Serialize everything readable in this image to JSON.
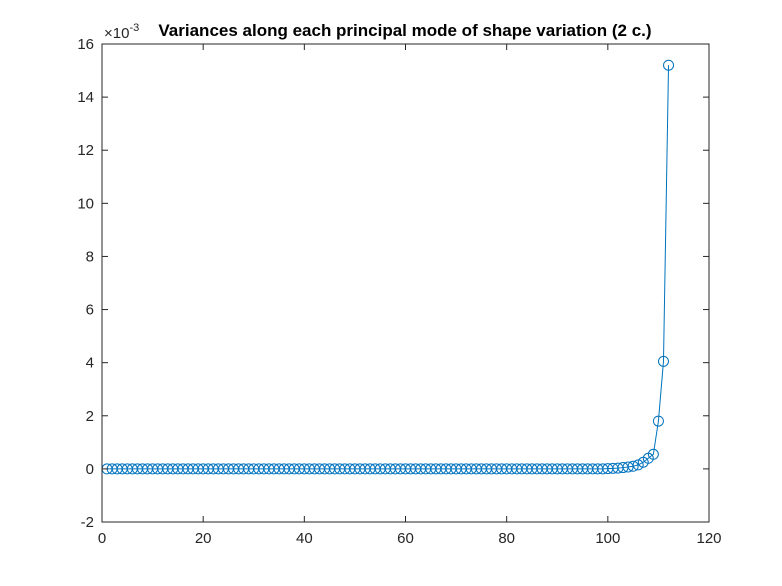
{
  "chart_data": {
    "type": "line",
    "title": "Variances along each principal mode of shape variation (2 c.)",
    "xlabel": "",
    "ylabel": "",
    "xlim": [
      0,
      120
    ],
    "ylim": [
      -2,
      16
    ],
    "y_exponent_label": "×10",
    "y_exponent_power": "-3",
    "x_ticks": [
      0,
      20,
      40,
      60,
      80,
      100,
      120
    ],
    "y_ticks": [
      -2,
      0,
      2,
      4,
      6,
      8,
      10,
      12,
      14,
      16
    ],
    "x_tick_labels": [
      "0",
      "20",
      "40",
      "60",
      "80",
      "100",
      "120"
    ],
    "y_tick_labels": [
      "-2",
      "0",
      "2",
      "4",
      "6",
      "8",
      "10",
      "12",
      "14",
      "16"
    ],
    "grid": false,
    "marker": "circle",
    "line_color": "#0072BD",
    "series": [
      {
        "x": [
          1,
          2,
          3,
          4,
          5,
          6,
          7,
          8,
          9,
          10,
          11,
          12,
          13,
          14,
          15,
          16,
          17,
          18,
          19,
          20,
          21,
          22,
          23,
          24,
          25,
          26,
          27,
          28,
          29,
          30,
          31,
          32,
          33,
          34,
          35,
          36,
          37,
          38,
          39,
          40,
          41,
          42,
          43,
          44,
          45,
          46,
          47,
          48,
          49,
          50,
          51,
          52,
          53,
          54,
          55,
          56,
          57,
          58,
          59,
          60,
          61,
          62,
          63,
          64,
          65,
          66,
          67,
          68,
          69,
          70,
          71,
          72,
          73,
          74,
          75,
          76,
          77,
          78,
          79,
          80,
          81,
          82,
          83,
          84,
          85,
          86,
          87,
          88,
          89,
          90,
          91,
          92,
          93,
          94,
          95,
          96,
          97,
          98,
          99,
          100,
          101,
          102,
          103,
          104,
          105,
          106,
          107,
          108,
          109,
          110,
          111,
          112
        ],
        "values": [
          0,
          0,
          0,
          0,
          0,
          0,
          0,
          0,
          0,
          0,
          0,
          0,
          0,
          0,
          0,
          0,
          0,
          0,
          0,
          0,
          0,
          0,
          0,
          0,
          0,
          0,
          0,
          0,
          0,
          0,
          0,
          0,
          0,
          0,
          0,
          0,
          0,
          0,
          0,
          0,
          0,
          0,
          0,
          0,
          0,
          0,
          0,
          0,
          0,
          0,
          0,
          0,
          0,
          0,
          0,
          0,
          0,
          0,
          0,
          0,
          0,
          0,
          0,
          0,
          0,
          0,
          0,
          0,
          0,
          0,
          0,
          0,
          0,
          0,
          0,
          0,
          0,
          0,
          0,
          0,
          0,
          0,
          0,
          0,
          0,
          0,
          0,
          0,
          0,
          0,
          0,
          0,
          0,
          0,
          0,
          0,
          0,
          0,
          0,
          0.01,
          0.02,
          0.03,
          0.05,
          0.07,
          0.1,
          0.15,
          0.25,
          0.4,
          0.55,
          1.8,
          4.05,
          15.2
        ]
      }
    ]
  }
}
